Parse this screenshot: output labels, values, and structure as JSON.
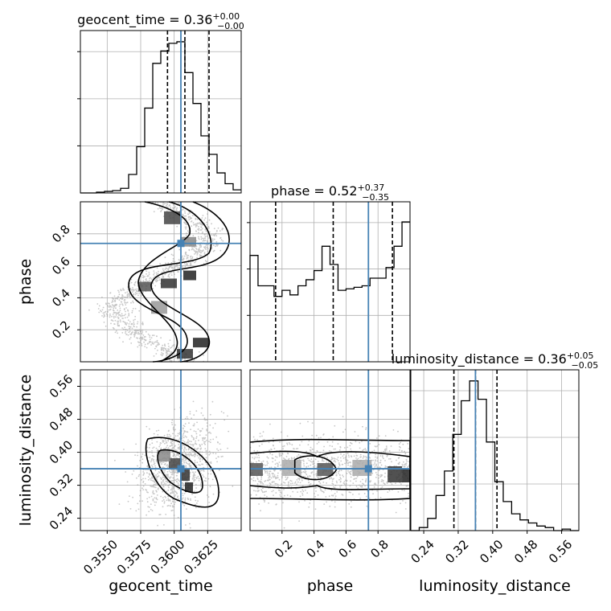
{
  "chart_data": {
    "type": "corner",
    "parameters": [
      {
        "key": "geocent_time",
        "label": "geocent_time",
        "range": [
          0.353,
          0.365
        ],
        "ticks": [
          "0.3550",
          "0.3575",
          "0.3600",
          "0.3625"
        ],
        "tick_values": [
          0.355,
          0.3575,
          0.36,
          0.3625
        ],
        "truth": 0.3605,
        "quantiles": [
          0.3595,
          0.3608,
          0.3626
        ],
        "title": {
          "main": "geocent_time = 0.36",
          "plus": "+0.00",
          "minus": "−0.00"
        }
      },
      {
        "key": "phase",
        "label": "phase",
        "range": [
          0.0,
          1.0
        ],
        "ticks": [
          "0.2",
          "0.4",
          "0.6",
          "0.8"
        ],
        "tick_values": [
          0.2,
          0.4,
          0.6,
          0.8
        ],
        "truth": 0.74,
        "quantiles": [
          0.16,
          0.52,
          0.89
        ],
        "title": {
          "main": "phase = 0.52",
          "plus": "+0.37",
          "minus": "−0.35"
        }
      },
      {
        "key": "luminosity_distance",
        "label": "luminosity_distance",
        "range": [
          0.21,
          0.6
        ],
        "ticks": [
          "0.24",
          "0.32",
          "0.40",
          "0.48",
          "0.56"
        ],
        "tick_values": [
          0.24,
          0.32,
          0.4,
          0.48,
          0.56
        ],
        "truth": 0.36,
        "quantiles": [
          0.31,
          0.36,
          0.41
        ],
        "title": {
          "main": "luminosity_distance = 0.36",
          "plus": "+0.05",
          "minus": "−0.05"
        }
      }
    ],
    "histograms": {
      "geocent_time": [
        0.0,
        0.0,
        0.005,
        0.01,
        0.015,
        0.03,
        0.12,
        0.3,
        0.55,
        0.84,
        0.92,
        0.97,
        0.98,
        0.78,
        0.58,
        0.37,
        0.25,
        0.13,
        0.06,
        0.02
      ],
      "phase": [
        0.7,
        0.5,
        0.5,
        0.43,
        0.47,
        0.44,
        0.5,
        0.54,
        0.6,
        0.76,
        0.64,
        0.47,
        0.48,
        0.49,
        0.5,
        0.55,
        0.55,
        0.62,
        0.76,
        0.92
      ],
      "luminosity_distance": [
        0.0,
        0.02,
        0.08,
        0.23,
        0.39,
        0.63,
        0.85,
        0.98,
        0.86,
        0.58,
        0.32,
        0.19,
        0.11,
        0.07,
        0.05,
        0.03,
        0.02,
        0.0,
        0.01,
        0.0
      ]
    },
    "grid": true
  }
}
